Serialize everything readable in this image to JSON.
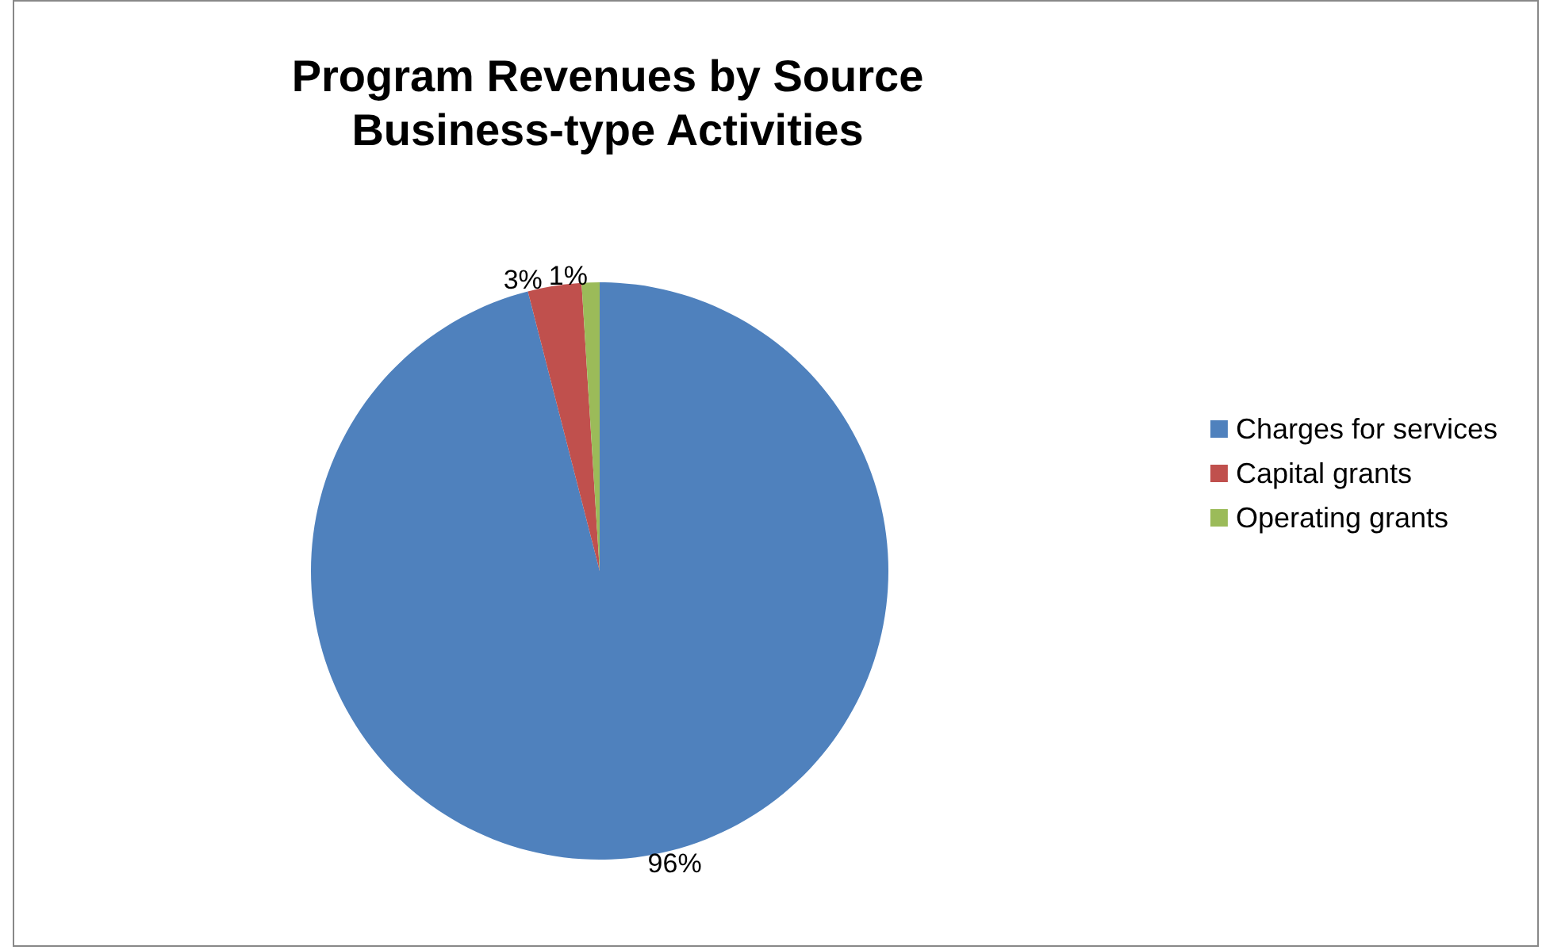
{
  "chart_data": {
    "type": "pie",
    "title": "Program Revenues by Source",
    "subtitle": "Business-type Activities",
    "categories": [
      "Charges for services",
      "Capital grants",
      "Operating grants"
    ],
    "values": [
      96,
      3,
      1
    ],
    "colors": [
      "#4f81bd",
      "#c0504d",
      "#9bbb59"
    ],
    "value_labels": [
      "96%",
      "3%",
      "1%"
    ],
    "legend": "right"
  }
}
